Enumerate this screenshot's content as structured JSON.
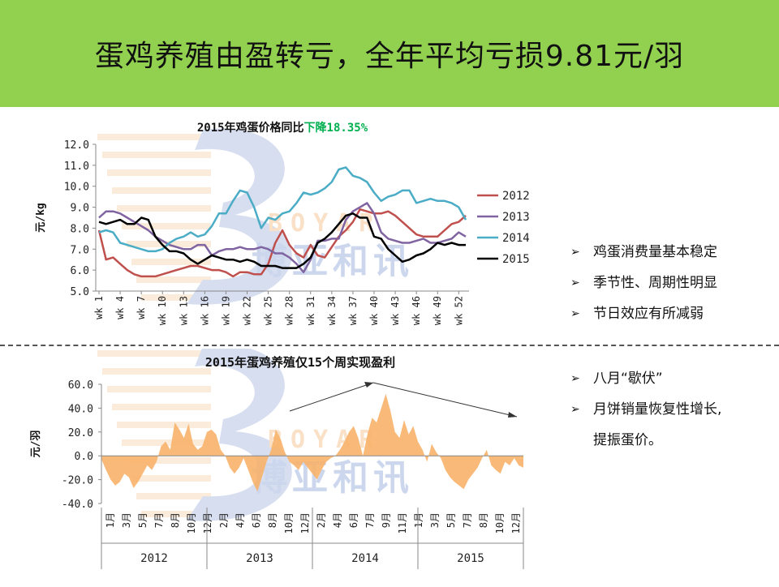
{
  "slide": {
    "title": "蛋鸡养殖由盈转亏，全年平均亏损9.81元/羽"
  },
  "watermark": {
    "brand_en": "BOYAR",
    "brand_cn": "博亚和讯"
  },
  "bullets_group1": [
    "鸡蛋消费量基本稳定",
    "季节性、周期性明显",
    "节日效应有所减弱"
  ],
  "bullets_group2": {
    "items": [
      "八月“歇伏”",
      "月饼销量恢复性增长,"
    ],
    "continuation": "提振蛋价。"
  },
  "colors": {
    "banner": "#92d050",
    "s2012": "#c0504d",
    "s2013": "#8064a2",
    "s2014": "#4bacc6",
    "s2015": "#000000",
    "profit_area": "#f8b26a",
    "highlight": "#00b050"
  },
  "chart_data": [
    {
      "type": "line",
      "title": "2015年鸡蛋价格同比",
      "title_highlight": "下降18.35%",
      "ylabel": "元/kg",
      "xlabel": "",
      "ylim": [
        5.0,
        12.0
      ],
      "yticks": [
        "12.0",
        "11.0",
        "10.0",
        "9.0",
        "8.0",
        "7.0",
        "6.0",
        "5.0"
      ],
      "xtick_labels": [
        "wk 1",
        "wk 4",
        "wk 7",
        "wk 10",
        "wk 13",
        "wk 16",
        "wk 19",
        "wk 22",
        "wk 25",
        "wk 28",
        "wk 31",
        "wk 34",
        "wk 37",
        "wk 40",
        "wk 43",
        "wk 46",
        "wk 49",
        "wk 52"
      ],
      "legend_position": "right",
      "grid": false,
      "series": [
        {
          "name": "2012",
          "values": [
            7.9,
            6.5,
            6.6,
            6.3,
            6.0,
            5.8,
            5.7,
            5.7,
            5.7,
            5.8,
            5.9,
            6.0,
            6.1,
            6.2,
            6.2,
            6.1,
            6.0,
            6.0,
            5.9,
            5.7,
            5.9,
            5.9,
            5.8,
            5.8,
            6.3,
            7.3,
            7.9,
            7.2,
            6.8,
            6.6,
            7.2,
            6.7,
            6.6,
            7.1,
            7.6,
            7.9,
            8.3,
            8.9,
            8.8,
            8.7,
            8.7,
            8.8,
            8.6,
            8.3,
            8.0,
            7.7,
            7.6,
            7.6,
            7.6,
            7.9,
            8.2,
            8.3,
            8.6
          ]
        },
        {
          "name": "2013",
          "values": [
            8.5,
            8.8,
            8.8,
            8.7,
            8.5,
            8.3,
            8.1,
            7.9,
            7.6,
            7.4,
            7.2,
            7.1,
            7.0,
            7.0,
            7.2,
            7.2,
            6.7,
            6.9,
            7.0,
            7.0,
            7.1,
            7.0,
            7.0,
            7.1,
            7.0,
            6.8,
            6.8,
            6.6,
            6.3,
            5.9,
            6.5,
            7.4,
            7.4,
            7.5,
            7.5,
            8.4,
            8.8,
            9.0,
            9.2,
            8.7,
            7.8,
            7.5,
            7.4,
            7.3,
            7.3,
            7.4,
            7.5,
            7.3,
            7.3,
            7.4,
            7.5,
            7.8,
            7.6
          ]
        },
        {
          "name": "2014",
          "values": [
            7.8,
            7.9,
            7.8,
            7.3,
            7.2,
            7.1,
            7.0,
            6.9,
            6.9,
            7.0,
            7.3,
            7.5,
            7.6,
            7.8,
            7.6,
            7.7,
            8.1,
            8.7,
            8.7,
            9.3,
            9.8,
            9.7,
            9.0,
            8.0,
            8.5,
            8.4,
            8.7,
            8.8,
            9.2,
            9.7,
            9.6,
            9.7,
            9.9,
            10.2,
            10.8,
            10.9,
            10.5,
            10.4,
            10.2,
            9.7,
            9.3,
            9.5,
            9.6,
            9.8,
            9.8,
            9.2,
            9.3,
            9.4,
            9.3,
            9.3,
            9.2,
            9.0,
            8.4
          ]
        },
        {
          "name": "2015",
          "values": [
            8.3,
            8.2,
            8.3,
            8.4,
            8.2,
            8.2,
            8.5,
            8.4,
            7.6,
            7.2,
            6.9,
            6.9,
            6.8,
            6.5,
            6.3,
            6.5,
            6.7,
            6.6,
            6.5,
            6.5,
            6.4,
            6.5,
            6.4,
            6.2,
            6.2,
            6.2,
            6.1,
            6.1,
            6.1,
            6.3,
            6.6,
            7.3,
            7.5,
            7.8,
            8.2,
            8.6,
            8.7,
            8.5,
            8.5,
            7.6,
            7.5,
            7.0,
            6.7,
            6.4,
            6.5,
            6.7,
            6.8,
            7.0,
            7.3,
            7.2,
            7.3,
            7.2,
            7.2
          ]
        }
      ]
    },
    {
      "type": "area",
      "title": "2015年蛋鸡养殖仅15个周实现盈利",
      "ylabel": "元/羽",
      "xlabel": "",
      "ylim": [
        -40.0,
        60.0
      ],
      "yticks": [
        "60.0",
        "40.0",
        "20.0",
        "0.0",
        "-20.0",
        "-40.0"
      ],
      "month_labels": [
        "1月",
        "3月",
        "5月",
        "7月",
        "8月",
        "10月",
        "12月",
        "2月",
        "4月",
        "6月",
        "8月",
        "10月",
        "12月",
        "2月",
        "4月",
        "6月",
        "7月",
        "9月",
        "11月",
        "1月",
        "3月",
        "5月",
        "7月",
        "8月",
        "10月",
        "12月"
      ],
      "year_labels": [
        "2012",
        "2013",
        "2014",
        "2015"
      ],
      "grid": false,
      "series": [
        {
          "name": "",
          "values": [
            -3,
            -12,
            -20,
            -25,
            -22,
            -15,
            -18,
            -27,
            -22,
            -15,
            -8,
            -12,
            -5,
            8,
            12,
            5,
            28,
            22,
            15,
            27,
            10,
            5,
            8,
            20,
            22,
            18,
            5,
            0,
            -10,
            -15,
            -10,
            -2,
            -12,
            -22,
            -30,
            -18,
            -5,
            5,
            22,
            15,
            3,
            -5,
            -8,
            -12,
            -5,
            -10,
            -15,
            -20,
            -12,
            -5,
            -2,
            0,
            5,
            12,
            20,
            25,
            15,
            0,
            18,
            32,
            28,
            40,
            52,
            38,
            20,
            15,
            30,
            18,
            25,
            12,
            5,
            -5,
            10,
            3,
            -2,
            -12,
            -18,
            -22,
            -25,
            -28,
            -20,
            -15,
            -10,
            -2,
            5,
            -8,
            -12,
            -15,
            -5,
            -8,
            -2,
            -8,
            -10
          ]
        }
      ],
      "annotations": [
        "trend-up-arrow",
        "trend-down-arrow"
      ]
    }
  ]
}
